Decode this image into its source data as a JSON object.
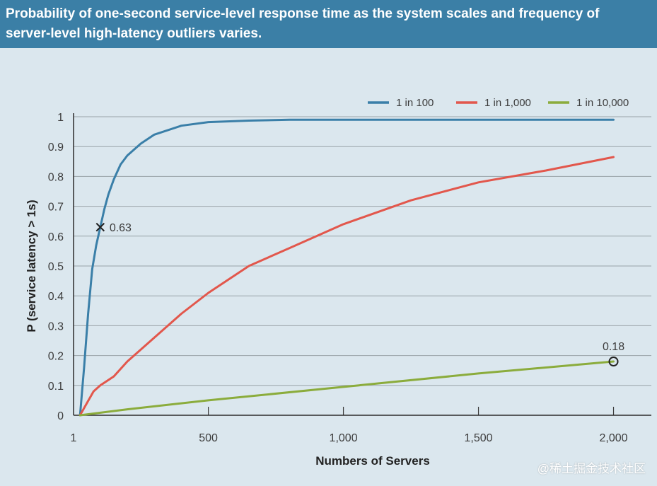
{
  "header": {
    "title": "Probability of one-second service-level response time as the system scales and frequency of server-level high-latency outliers varies."
  },
  "watermark": "@稀土掘金技术社区",
  "colors": {
    "header_bg": "#3b7fa6",
    "plot_bg": "#dbe7ee",
    "series_1_in_100": "#3a7fa8",
    "series_1_in_1000": "#e2574c",
    "series_1_in_10000": "#8bac3c"
  },
  "chart_data": {
    "type": "line",
    "title": "",
    "xlabel": "Numbers of Servers",
    "ylabel": "P (service latency > 1s)",
    "xlim": [
      1,
      2140
    ],
    "ylim": [
      0,
      1
    ],
    "x_ticks": [
      {
        "value": 1,
        "label": "1"
      },
      {
        "value": 500,
        "label": "500"
      },
      {
        "value": 1000,
        "label": "1,000"
      },
      {
        "value": 1500,
        "label": "1,500"
      },
      {
        "value": 2000,
        "label": "2,000"
      }
    ],
    "y_ticks": [
      {
        "value": 0,
        "label": "0"
      },
      {
        "value": 0.1,
        "label": "0.1"
      },
      {
        "value": 0.2,
        "label": "0.2"
      },
      {
        "value": 0.3,
        "label": "0.3"
      },
      {
        "value": 0.4,
        "label": "0.4"
      },
      {
        "value": 0.5,
        "label": "0.5"
      },
      {
        "value": 0.6,
        "label": "0.6"
      },
      {
        "value": 0.7,
        "label": "0.7"
      },
      {
        "value": 0.8,
        "label": "0.8"
      },
      {
        "value": 0.9,
        "label": "0.9"
      },
      {
        "value": 1,
        "label": "1"
      }
    ],
    "grid": true,
    "legend_position": "top-right",
    "series": [
      {
        "name": "1 in 100",
        "x": [
          25,
          40,
          55,
          70,
          85,
          100,
          115,
          130,
          150,
          175,
          200,
          250,
          300,
          400,
          500,
          650,
          800,
          1000,
          1500,
          2000
        ],
        "y": [
          0,
          0.16,
          0.34,
          0.49,
          0.57,
          0.63,
          0.69,
          0.74,
          0.79,
          0.84,
          0.87,
          0.91,
          0.94,
          0.97,
          0.982,
          0.987,
          0.99,
          0.99,
          0.99,
          0.99
        ]
      },
      {
        "name": "1 in 1,000",
        "x": [
          25,
          50,
          75,
          100,
          150,
          200,
          300,
          400,
          500,
          650,
          800,
          1000,
          1250,
          1500,
          1750,
          2000
        ],
        "y": [
          0,
          0.04,
          0.08,
          0.1,
          0.13,
          0.18,
          0.26,
          0.34,
          0.41,
          0.5,
          0.56,
          0.64,
          0.72,
          0.78,
          0.82,
          0.865
        ]
      },
      {
        "name": "1 in 10,000",
        "x": [
          25,
          200,
          500,
          1000,
          1500,
          2000
        ],
        "y": [
          0,
          0.02,
          0.05,
          0.095,
          0.14,
          0.18
        ]
      }
    ],
    "annotations": [
      {
        "series": "1 in 100",
        "x": 100,
        "y": 0.63,
        "label": "0.63",
        "marker": "x"
      },
      {
        "series": "1 in 10,000",
        "x": 2000,
        "y": 0.18,
        "label": "0.18",
        "marker": "circle"
      }
    ]
  }
}
